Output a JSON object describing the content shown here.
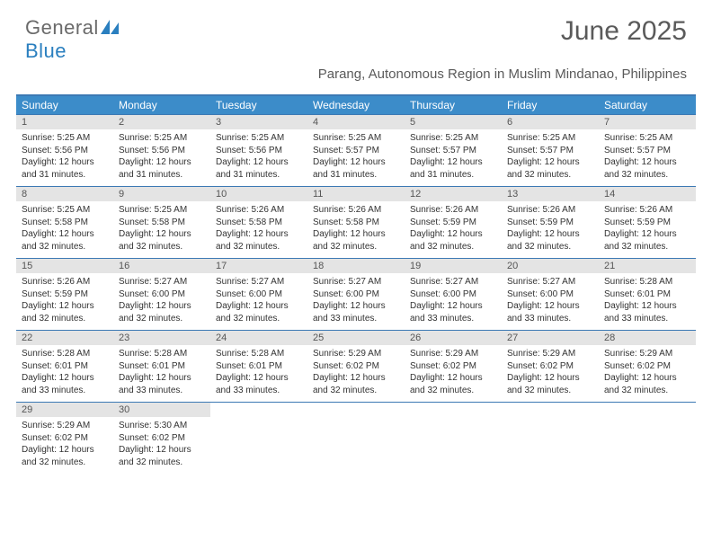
{
  "logo": {
    "general": "General",
    "blue": "Blue",
    "accent_color": "#2a7fbf",
    "gray_color": "#6a6a6a"
  },
  "title": "June 2025",
  "location": "Parang, Autonomous Region in Muslim Mindanao, Philippines",
  "colors": {
    "header_bar": "#3c8cc9",
    "rule": "#3c79b4",
    "daynum_bg": "#e4e4e4",
    "text": "#333333",
    "muted": "#5a5a5a"
  },
  "days_of_week": [
    "Sunday",
    "Monday",
    "Tuesday",
    "Wednesday",
    "Thursday",
    "Friday",
    "Saturday"
  ],
  "weeks": [
    [
      {
        "n": "1",
        "sr": "5:25 AM",
        "ss": "5:56 PM",
        "dl": "12 hours and 31 minutes."
      },
      {
        "n": "2",
        "sr": "5:25 AM",
        "ss": "5:56 PM",
        "dl": "12 hours and 31 minutes."
      },
      {
        "n": "3",
        "sr": "5:25 AM",
        "ss": "5:56 PM",
        "dl": "12 hours and 31 minutes."
      },
      {
        "n": "4",
        "sr": "5:25 AM",
        "ss": "5:57 PM",
        "dl": "12 hours and 31 minutes."
      },
      {
        "n": "5",
        "sr": "5:25 AM",
        "ss": "5:57 PM",
        "dl": "12 hours and 31 minutes."
      },
      {
        "n": "6",
        "sr": "5:25 AM",
        "ss": "5:57 PM",
        "dl": "12 hours and 32 minutes."
      },
      {
        "n": "7",
        "sr": "5:25 AM",
        "ss": "5:57 PM",
        "dl": "12 hours and 32 minutes."
      }
    ],
    [
      {
        "n": "8",
        "sr": "5:25 AM",
        "ss": "5:58 PM",
        "dl": "12 hours and 32 minutes."
      },
      {
        "n": "9",
        "sr": "5:25 AM",
        "ss": "5:58 PM",
        "dl": "12 hours and 32 minutes."
      },
      {
        "n": "10",
        "sr": "5:26 AM",
        "ss": "5:58 PM",
        "dl": "12 hours and 32 minutes."
      },
      {
        "n": "11",
        "sr": "5:26 AM",
        "ss": "5:58 PM",
        "dl": "12 hours and 32 minutes."
      },
      {
        "n": "12",
        "sr": "5:26 AM",
        "ss": "5:59 PM",
        "dl": "12 hours and 32 minutes."
      },
      {
        "n": "13",
        "sr": "5:26 AM",
        "ss": "5:59 PM",
        "dl": "12 hours and 32 minutes."
      },
      {
        "n": "14",
        "sr": "5:26 AM",
        "ss": "5:59 PM",
        "dl": "12 hours and 32 minutes."
      }
    ],
    [
      {
        "n": "15",
        "sr": "5:26 AM",
        "ss": "5:59 PM",
        "dl": "12 hours and 32 minutes."
      },
      {
        "n": "16",
        "sr": "5:27 AM",
        "ss": "6:00 PM",
        "dl": "12 hours and 32 minutes."
      },
      {
        "n": "17",
        "sr": "5:27 AM",
        "ss": "6:00 PM",
        "dl": "12 hours and 32 minutes."
      },
      {
        "n": "18",
        "sr": "5:27 AM",
        "ss": "6:00 PM",
        "dl": "12 hours and 33 minutes."
      },
      {
        "n": "19",
        "sr": "5:27 AM",
        "ss": "6:00 PM",
        "dl": "12 hours and 33 minutes."
      },
      {
        "n": "20",
        "sr": "5:27 AM",
        "ss": "6:00 PM",
        "dl": "12 hours and 33 minutes."
      },
      {
        "n": "21",
        "sr": "5:28 AM",
        "ss": "6:01 PM",
        "dl": "12 hours and 33 minutes."
      }
    ],
    [
      {
        "n": "22",
        "sr": "5:28 AM",
        "ss": "6:01 PM",
        "dl": "12 hours and 33 minutes."
      },
      {
        "n": "23",
        "sr": "5:28 AM",
        "ss": "6:01 PM",
        "dl": "12 hours and 33 minutes."
      },
      {
        "n": "24",
        "sr": "5:28 AM",
        "ss": "6:01 PM",
        "dl": "12 hours and 33 minutes."
      },
      {
        "n": "25",
        "sr": "5:29 AM",
        "ss": "6:02 PM",
        "dl": "12 hours and 32 minutes."
      },
      {
        "n": "26",
        "sr": "5:29 AM",
        "ss": "6:02 PM",
        "dl": "12 hours and 32 minutes."
      },
      {
        "n": "27",
        "sr": "5:29 AM",
        "ss": "6:02 PM",
        "dl": "12 hours and 32 minutes."
      },
      {
        "n": "28",
        "sr": "5:29 AM",
        "ss": "6:02 PM",
        "dl": "12 hours and 32 minutes."
      }
    ],
    [
      {
        "n": "29",
        "sr": "5:29 AM",
        "ss": "6:02 PM",
        "dl": "12 hours and 32 minutes."
      },
      {
        "n": "30",
        "sr": "5:30 AM",
        "ss": "6:02 PM",
        "dl": "12 hours and 32 minutes."
      },
      null,
      null,
      null,
      null,
      null
    ]
  ],
  "labels": {
    "sunrise": "Sunrise:",
    "sunset": "Sunset:",
    "daylight": "Daylight:"
  }
}
